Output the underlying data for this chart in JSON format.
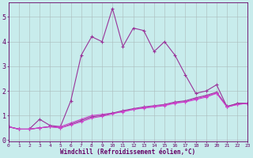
{
  "xlabel": "Windchill (Refroidissement éolien,°C)",
  "background_color": "#c8ecec",
  "line_color1": "#993399",
  "line_color2": "#cc44cc",
  "xlim": [
    0,
    23
  ],
  "ylim": [
    -0.05,
    5.6
  ],
  "xticks": [
    0,
    1,
    2,
    3,
    4,
    5,
    6,
    7,
    8,
    9,
    10,
    11,
    12,
    13,
    14,
    15,
    16,
    17,
    18,
    19,
    20,
    21,
    22,
    23
  ],
  "yticks": [
    0,
    1,
    2,
    3,
    4,
    5
  ],
  "x": [
    0,
    1,
    2,
    3,
    4,
    5,
    6,
    7,
    8,
    9,
    10,
    11,
    12,
    13,
    14,
    15,
    16,
    17,
    18,
    19,
    20,
    21,
    22,
    23
  ],
  "line1": [
    0.55,
    0.45,
    0.45,
    0.85,
    0.6,
    0.55,
    1.6,
    3.45,
    4.2,
    4.0,
    5.35,
    3.8,
    4.55,
    4.45,
    3.6,
    4.0,
    3.45,
    2.65,
    1.9,
    2.0,
    2.25,
    1.35,
    1.5,
    1.5
  ],
  "line2": [
    0.55,
    0.45,
    0.45,
    0.5,
    0.55,
    0.55,
    0.7,
    0.85,
    1.0,
    1.05,
    1.1,
    1.15,
    1.25,
    1.3,
    1.35,
    1.4,
    1.5,
    1.55,
    1.65,
    1.75,
    1.9,
    1.35,
    1.45,
    1.5
  ],
  "line3": [
    0.55,
    0.45,
    0.45,
    0.5,
    0.55,
    0.5,
    0.65,
    0.8,
    0.95,
    1.0,
    1.1,
    1.2,
    1.28,
    1.35,
    1.4,
    1.45,
    1.55,
    1.6,
    1.72,
    1.82,
    1.95,
    1.38,
    1.48,
    1.5
  ],
  "line4": [
    0.55,
    0.45,
    0.45,
    0.5,
    0.55,
    0.5,
    0.62,
    0.75,
    0.9,
    0.97,
    1.07,
    1.17,
    1.25,
    1.32,
    1.38,
    1.43,
    1.52,
    1.57,
    1.68,
    1.78,
    1.92,
    1.35,
    1.45,
    1.5
  ]
}
